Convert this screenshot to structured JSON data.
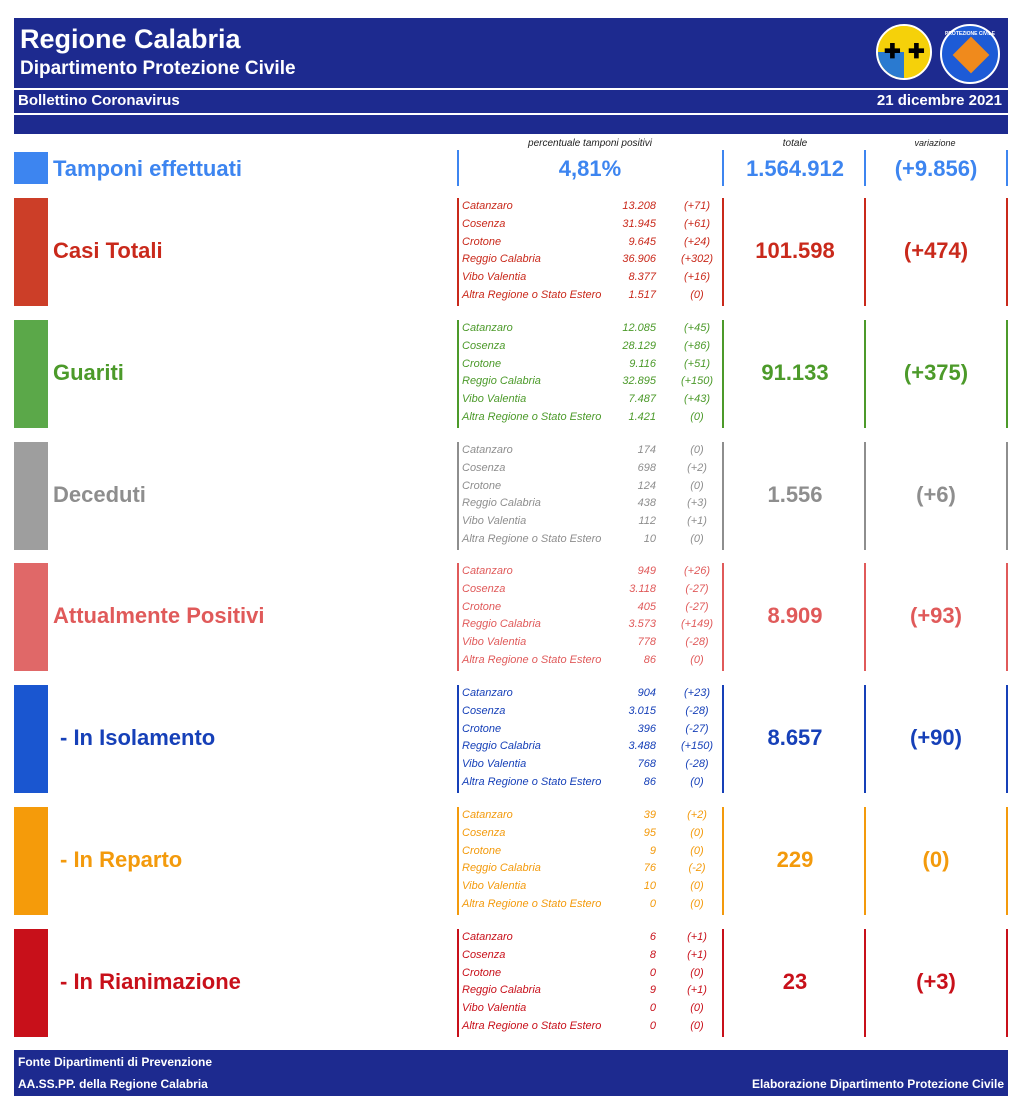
{
  "header": {
    "title": "Regione Calabria",
    "subtitle": "Dipartimento Protezione Civile",
    "bulletin": "Bollettino Coronavirus",
    "date": "21 dicembre 2021",
    "logo_text": "PROTEZIONE CIVILE"
  },
  "column_headers": {
    "percent": "percentuale tamponi positivi",
    "total": "totale",
    "variation": "variazione"
  },
  "tamponi": {
    "label": "Tamponi effettuati",
    "percent": "4,81%",
    "total": "1.564.912",
    "variation": "(+9.856)",
    "color": "#3d85f0"
  },
  "sections": [
    {
      "label": "Casi Totali",
      "total": "101.598",
      "variation": "(+474)",
      "color": "#c9291b",
      "swatch": "#cc3e28",
      "rows": [
        {
          "name": "Catanzaro",
          "value": "13.208",
          "delta": "(+71)"
        },
        {
          "name": "Cosenza",
          "value": "31.945",
          "delta": "(+61)"
        },
        {
          "name": "Crotone",
          "value": "9.645",
          "delta": "(+24)"
        },
        {
          "name": "Reggio Calabria",
          "value": "36.906",
          "delta": "(+302)"
        },
        {
          "name": "Vibo Valentia",
          "value": "8.377",
          "delta": "(+16)"
        },
        {
          "name": "Altra Regione o Stato Estero",
          "value": "1.517",
          "delta": "(0)"
        }
      ]
    },
    {
      "label": "Guariti",
      "total": "91.133",
      "variation": "(+375)",
      "color": "#4c9a2a",
      "swatch": "#5ba849",
      "rows": [
        {
          "name": "Catanzaro",
          "value": "12.085",
          "delta": "(+45)"
        },
        {
          "name": "Cosenza",
          "value": "28.129",
          "delta": "(+86)"
        },
        {
          "name": "Crotone",
          "value": "9.116",
          "delta": "(+51)"
        },
        {
          "name": "Reggio Calabria",
          "value": "32.895",
          "delta": "(+150)"
        },
        {
          "name": "Vibo Valentia",
          "value": "7.487",
          "delta": "(+43)"
        },
        {
          "name": "Altra Regione o Stato Estero",
          "value": "1.421",
          "delta": "(0)"
        }
      ]
    },
    {
      "label": "Deceduti",
      "total": "1.556",
      "variation": "(+6)",
      "color": "#8e8e8e",
      "swatch": "#9e9e9e",
      "rows": [
        {
          "name": "Catanzaro",
          "value": "174",
          "delta": "(0)"
        },
        {
          "name": "Cosenza",
          "value": "698",
          "delta": "(+2)"
        },
        {
          "name": "Crotone",
          "value": "124",
          "delta": "(0)"
        },
        {
          "name": "Reggio Calabria",
          "value": "438",
          "delta": "(+3)"
        },
        {
          "name": "Vibo Valentia",
          "value": "112",
          "delta": "(+1)"
        },
        {
          "name": "Altra Regione o Stato Estero",
          "value": "10",
          "delta": "(0)"
        }
      ]
    },
    {
      "label": "Attualmente Positivi",
      "total": "8.909",
      "variation": "(+93)",
      "color": "#e05a5a",
      "swatch": "#e06868",
      "rows": [
        {
          "name": "Catanzaro",
          "value": "949",
          "delta": "(+26)"
        },
        {
          "name": "Cosenza",
          "value": "3.118",
          "delta": "(-27)"
        },
        {
          "name": "Crotone",
          "value": "405",
          "delta": "(-27)"
        },
        {
          "name": "Reggio Calabria",
          "value": "3.573",
          "delta": "(+149)"
        },
        {
          "name": "Vibo Valentia",
          "value": "778",
          "delta": "(-28)"
        },
        {
          "name": "Altra Regione o Stato Estero",
          "value": "86",
          "delta": "(0)"
        }
      ]
    },
    {
      "label": "- In Isolamento",
      "total": "8.657",
      "variation": "(+90)",
      "color": "#1640b8",
      "swatch": "#1a56d0",
      "rows": [
        {
          "name": "Catanzaro",
          "value": "904",
          "delta": "(+23)"
        },
        {
          "name": "Cosenza",
          "value": "3.015",
          "delta": "(-28)"
        },
        {
          "name": "Crotone",
          "value": "396",
          "delta": "(-27)"
        },
        {
          "name": "Reggio Calabria",
          "value": "3.488",
          "delta": "(+150)"
        },
        {
          "name": "Vibo Valentia",
          "value": "768",
          "delta": "(-28)"
        },
        {
          "name": "Altra Regione o Stato Estero",
          "value": "86",
          "delta": "(0)"
        }
      ]
    },
    {
      "label": "- In Reparto",
      "total": "229",
      "variation": "(0)",
      "color": "#f39a0c",
      "swatch": "#f59b0a",
      "rows": [
        {
          "name": "Catanzaro",
          "value": "39",
          "delta": "(+2)"
        },
        {
          "name": "Cosenza",
          "value": "95",
          "delta": "(0)"
        },
        {
          "name": "Crotone",
          "value": "9",
          "delta": "(0)"
        },
        {
          "name": "Reggio Calabria",
          "value": "76",
          "delta": "(-2)"
        },
        {
          "name": "Vibo Valentia",
          "value": "10",
          "delta": "(0)"
        },
        {
          "name": "Altra Regione o Stato Estero",
          "value": "0",
          "delta": "(0)"
        }
      ]
    },
    {
      "label": "- In Rianimazione",
      "total": "23",
      "variation": "(+3)",
      "color": "#c8101a",
      "swatch": "#c8101a",
      "rows": [
        {
          "name": "Catanzaro",
          "value": "6",
          "delta": "(+1)"
        },
        {
          "name": "Cosenza",
          "value": "8",
          "delta": "(+1)"
        },
        {
          "name": "Crotone",
          "value": "0",
          "delta": "(0)"
        },
        {
          "name": "Reggio Calabria",
          "value": "9",
          "delta": "(+1)"
        },
        {
          "name": "Vibo Valentia",
          "value": "0",
          "delta": "(0)"
        },
        {
          "name": "Altra Regione o Stato Estero",
          "value": "0",
          "delta": "(0)"
        }
      ]
    }
  ],
  "footer": {
    "source_line1": "Fonte Dipartimenti di Prevenzione",
    "source_line2": "AA.SS.PP.  della Regione Calabria",
    "credit": "Elaborazione Dipartimento Protezione Civile"
  }
}
